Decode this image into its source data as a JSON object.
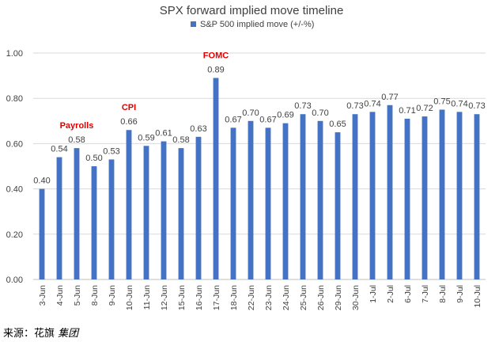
{
  "chart_data": {
    "type": "bar",
    "title": "SPX forward implied move timeline",
    "xlabel": "",
    "ylabel": "",
    "ylim": [
      0,
      1.0
    ],
    "yticks": [
      "0.00",
      "0.20",
      "0.40",
      "0.60",
      "0.80",
      "1.00"
    ],
    "grid": true,
    "legend_position": "top-center",
    "categories": [
      "3-Jun",
      "4-Jun",
      "5-Jun",
      "8-Jun",
      "9-Jun",
      "10-Jun",
      "11-Jun",
      "12-Jun",
      "15-Jun",
      "16-Jun",
      "17-Jun",
      "18-Jun",
      "22-Jun",
      "23-Jun",
      "24-Jun",
      "25-Jun",
      "26-Jun",
      "29-Jun",
      "30-Jun",
      "1-Jul",
      "2-Jul",
      "6-Jul",
      "7-Jul",
      "8-Jul",
      "9-Jul",
      "10-Jul"
    ],
    "series": [
      {
        "name": "S&P 500 implied move (+/-%)",
        "color": "#4472C4",
        "values": [
          0.4,
          0.54,
          0.58,
          0.5,
          0.53,
          0.66,
          0.59,
          0.61,
          0.58,
          0.63,
          0.89,
          0.67,
          0.7,
          0.67,
          0.69,
          0.73,
          0.7,
          0.65,
          0.73,
          0.74,
          0.77,
          0.71,
          0.72,
          0.75,
          0.74,
          0.73
        ],
        "labels": [
          "0.40",
          "0.54",
          "0.58",
          "0.50",
          "0.53",
          "0.66",
          "0.59",
          "0.61",
          "0.58",
          "0.63",
          "0.89",
          "0.67",
          "0.70",
          "0.67",
          "0.69",
          "0.73",
          "0.70",
          "0.65",
          "0.73",
          "0.74",
          "0.77",
          "0.71",
          "0.72",
          "0.75",
          "0.74",
          "0.73"
        ]
      }
    ],
    "annotations": [
      {
        "text": "Payrolls",
        "category": "5-Jun",
        "color": "#e00000"
      },
      {
        "text": "CPI",
        "category": "10-Jun",
        "color": "#e00000"
      },
      {
        "text": "FOMC",
        "category": "17-Jun",
        "color": "#e00000"
      }
    ]
  },
  "source": {
    "prefix": "来源：花旗",
    "brand": "集团"
  }
}
